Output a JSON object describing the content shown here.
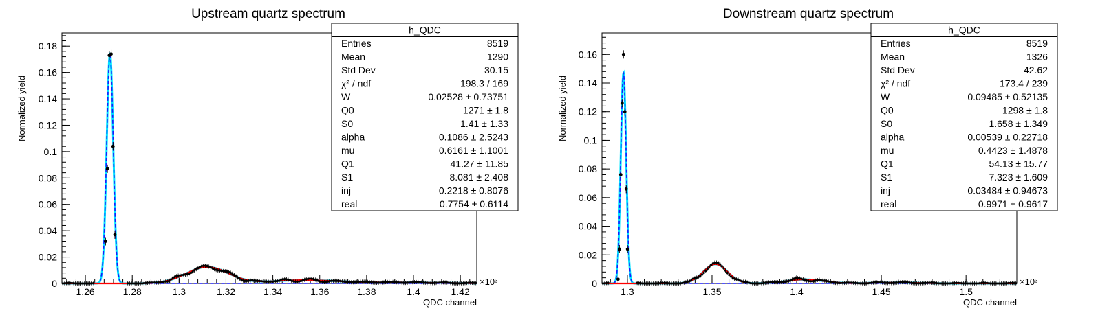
{
  "chart_data": [
    {
      "type": "scatter",
      "title": "Upstream quartz spectrum",
      "xlabel": "QDC channel",
      "ylabel": "Normalized yield",
      "x_multiplier": "×10³",
      "xlim": [
        1.25,
        1.427
      ],
      "ylim": [
        0,
        0.19
      ],
      "xticks": [
        1.26,
        1.28,
        1.3,
        1.32,
        1.34,
        1.36,
        1.38,
        1.4,
        1.42
      ],
      "xtick_labels": [
        "1.26",
        "1.28",
        "1.3",
        "1.32",
        "1.34",
        "1.36",
        "1.38",
        "1.4",
        "1.42"
      ],
      "yticks": [
        0,
        0.02,
        0.04,
        0.06,
        0.08,
        0.1,
        0.12,
        0.14,
        0.16,
        0.18
      ],
      "ytick_labels": [
        "0",
        "0.02",
        "0.04",
        "0.06",
        "0.08",
        "0.1",
        "0.12",
        "0.14",
        "0.16",
        "0.18"
      ],
      "pedestal": {
        "mean": 1.2705,
        "sigma": 0.0014,
        "amplitude": 0.175
      },
      "bumps": [
        {
          "mean": 1.312,
          "sigma": 0.009,
          "amplitude": 0.0125
        },
        {
          "mean": 1.353,
          "sigma": 0.014,
          "amplitude": 0.0025
        },
        {
          "mean": 1.394,
          "sigma": 0.018,
          "amplitude": 0.0008
        }
      ],
      "points": [
        {
          "x": 1.2686,
          "y": 0.032
        },
        {
          "x": 1.2694,
          "y": 0.087
        },
        {
          "x": 1.2702,
          "y": 0.173
        },
        {
          "x": 1.271,
          "y": 0.174
        },
        {
          "x": 1.2718,
          "y": 0.104
        },
        {
          "x": 1.2726,
          "y": 0.037
        }
      ],
      "series": [
        {
          "name": "data",
          "color": "#000000"
        },
        {
          "name": "fit-total",
          "color": "#00e5ff"
        },
        {
          "name": "fit-pedestal",
          "color": "#1a1aff"
        },
        {
          "name": "fit-signal",
          "color": "#ff0000"
        }
      ],
      "stats": {
        "title": "h_QDC",
        "rows": [
          {
            "label": "Entries",
            "value": "8519"
          },
          {
            "label": "Mean",
            "value": "1290"
          },
          {
            "label": "Std Dev",
            "value": "30.15"
          },
          {
            "label": "χ² / ndf",
            "value": "198.3 / 169"
          },
          {
            "label": "W",
            "value": "0.02528 ± 0.73751"
          },
          {
            "label": "Q0",
            "value": "1271 ± 1.8"
          },
          {
            "label": "S0",
            "value": "1.41 ± 1.33"
          },
          {
            "label": "alpha",
            "value": "0.1086 ± 2.5243"
          },
          {
            "label": "mu",
            "value": "0.6161 ± 1.1001"
          },
          {
            "label": "Q1",
            "value": "41.27 ± 11.85"
          },
          {
            "label": "S1",
            "value": "8.081 ± 2.408"
          },
          {
            "label": "inj",
            "value": "0.2218 ± 0.8076"
          },
          {
            "label": "real",
            "value": "0.7754 ± 0.6114"
          }
        ]
      }
    },
    {
      "type": "scatter",
      "title": "Downstream quartz spectrum",
      "xlabel": "QDC channel",
      "ylabel": "Normalized yield",
      "x_multiplier": "×10³",
      "xlim": [
        1.285,
        1.53
      ],
      "ylim": [
        0,
        0.175
      ],
      "xticks": [
        1.3,
        1.35,
        1.4,
        1.45,
        1.5
      ],
      "xtick_labels": [
        "1.3",
        "1.35",
        "1.4",
        "1.45",
        "1.5"
      ],
      "yticks": [
        0,
        0.02,
        0.04,
        0.06,
        0.08,
        0.1,
        0.12,
        0.14,
        0.16
      ],
      "ytick_labels": [
        "0",
        "0.02",
        "0.04",
        "0.06",
        "0.08",
        "0.1",
        "0.12",
        "0.14",
        "0.16"
      ],
      "pedestal": {
        "mean": 1.2977,
        "sigma": 0.0016,
        "amplitude": 0.147
      },
      "bumps": [
        {
          "mean": 1.352,
          "sigma": 0.0072,
          "amplitude": 0.0135
        },
        {
          "mean": 1.405,
          "sigma": 0.011,
          "amplitude": 0.0028
        },
        {
          "mean": 1.458,
          "sigma": 0.014,
          "amplitude": 0.0006
        }
      ],
      "points": [
        {
          "x": 1.2945,
          "y": 0.003
        },
        {
          "x": 1.2953,
          "y": 0.024
        },
        {
          "x": 1.2961,
          "y": 0.076
        },
        {
          "x": 1.2969,
          "y": 0.126
        },
        {
          "x": 1.2977,
          "y": 0.16
        },
        {
          "x": 1.2985,
          "y": 0.12
        },
        {
          "x": 1.2993,
          "y": 0.066
        },
        {
          "x": 1.3001,
          "y": 0.024
        }
      ],
      "series": [
        {
          "name": "data",
          "color": "#000000"
        },
        {
          "name": "fit-total",
          "color": "#00e5ff"
        },
        {
          "name": "fit-pedestal",
          "color": "#1a1aff"
        },
        {
          "name": "fit-signal",
          "color": "#ff0000"
        }
      ],
      "stats": {
        "title": "h_QDC",
        "rows": [
          {
            "label": "Entries",
            "value": "8519"
          },
          {
            "label": "Mean",
            "value": "1326"
          },
          {
            "label": "Std Dev",
            "value": "42.62"
          },
          {
            "label": "χ² / ndf",
            "value": "173.4 / 239"
          },
          {
            "label": "W",
            "value": "0.09485 ± 0.52135"
          },
          {
            "label": "Q0",
            "value": "1298 ± 1.8"
          },
          {
            "label": "S0",
            "value": "1.658 ± 1.349"
          },
          {
            "label": "alpha",
            "value": "0.00539 ± 0.22718"
          },
          {
            "label": "mu",
            "value": "0.4423 ± 1.4878"
          },
          {
            "label": "Q1",
            "value": "54.13 ± 15.77"
          },
          {
            "label": "S1",
            "value": "7.323 ± 1.609"
          },
          {
            "label": "inj",
            "value": "0.03484 ± 0.94673"
          },
          {
            "label": "real",
            "value": "0.9971 ± 0.9617"
          }
        ]
      }
    }
  ]
}
